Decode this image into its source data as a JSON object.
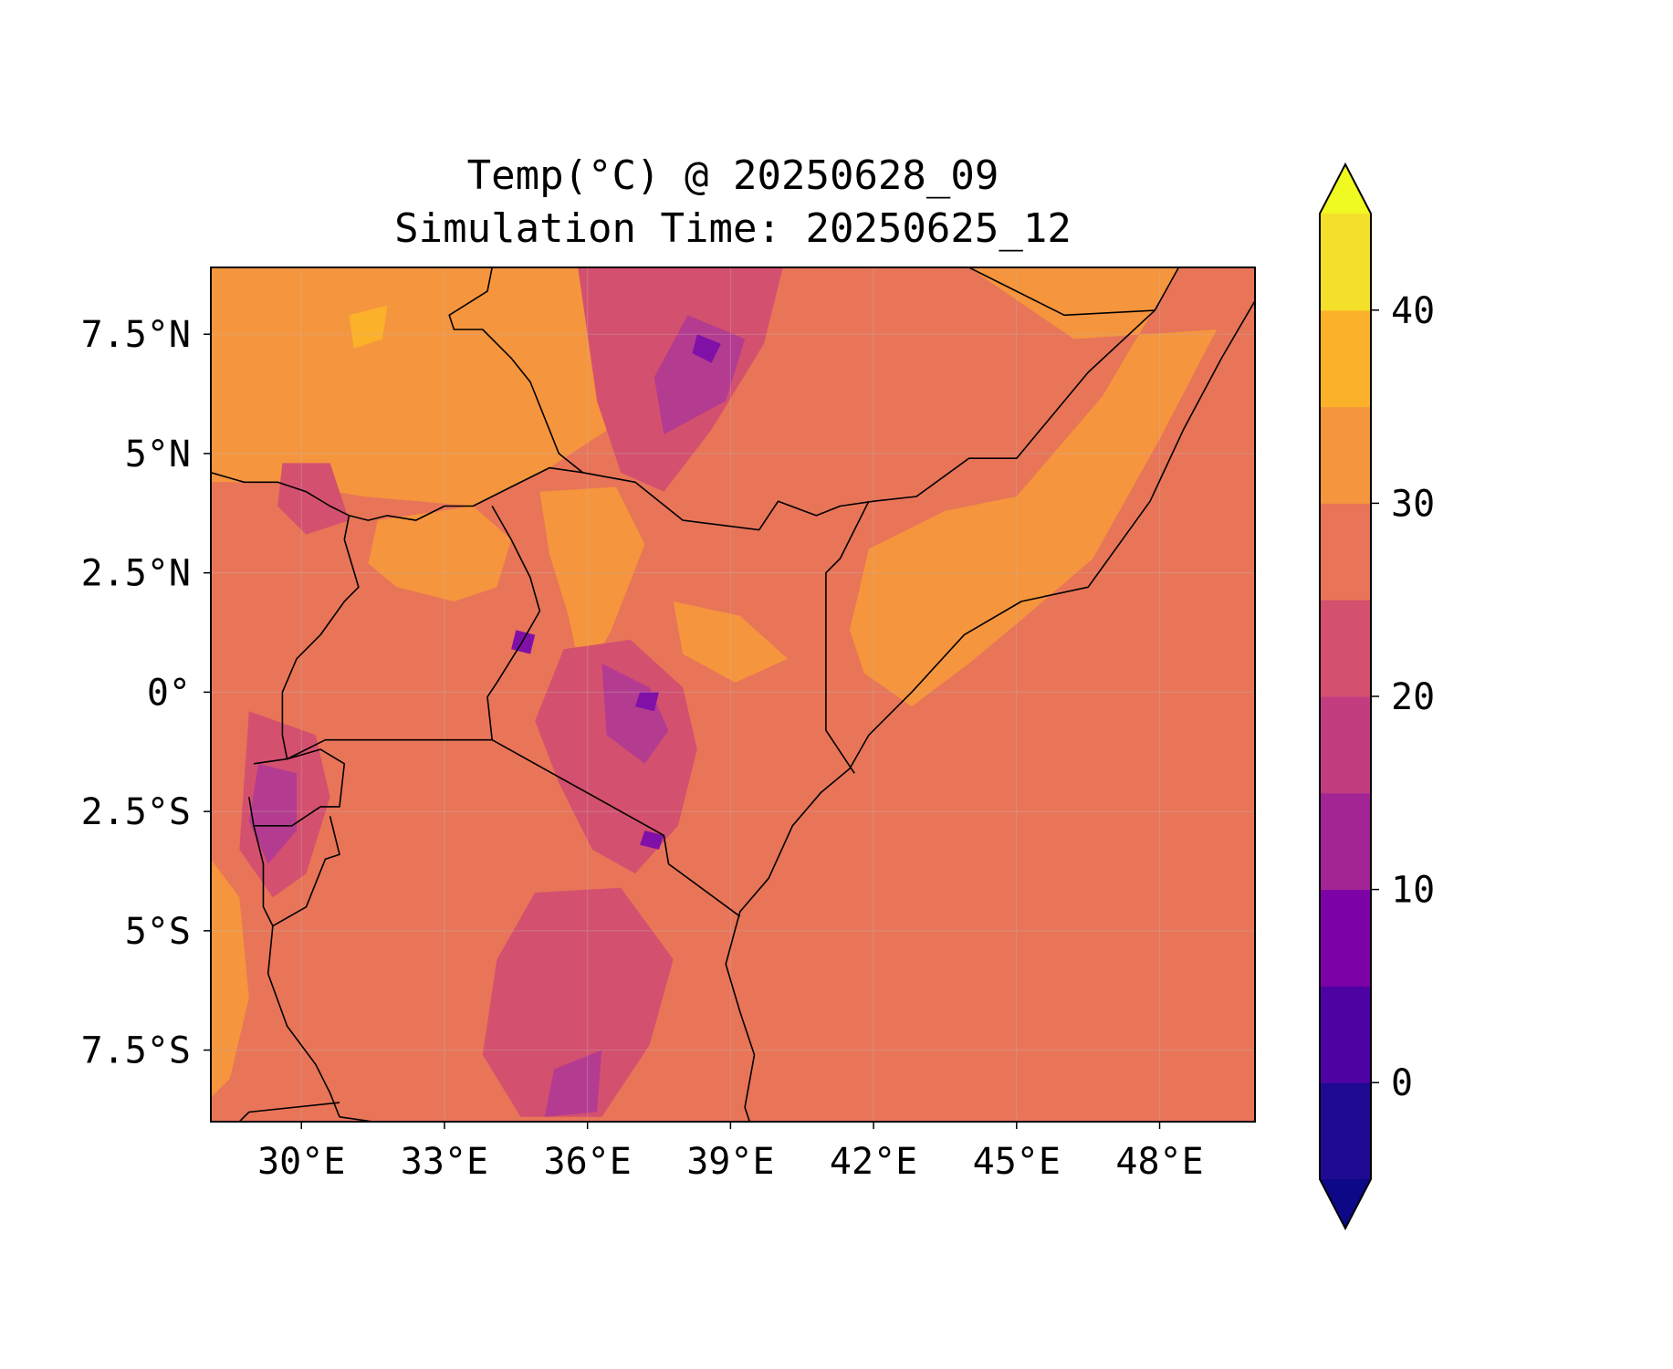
{
  "title": {
    "line1": "Temp(°C) @ 20250628_09",
    "line2": "Simulation Time: 20250625_12"
  },
  "map": {
    "projection": "PlateCarree",
    "extent": {
      "lon_min": 28.1,
      "lon_max": 50.0,
      "lat_min": -9.0,
      "lat_max": 8.9
    },
    "ocean_color": "#e87558",
    "x_ticks": [
      {
        "value": 30,
        "label": "30°E"
      },
      {
        "value": 33,
        "label": "33°E"
      },
      {
        "value": 36,
        "label": "36°E"
      },
      {
        "value": 39,
        "label": "39°E"
      },
      {
        "value": 42,
        "label": "42°E"
      },
      {
        "value": 45,
        "label": "45°E"
      },
      {
        "value": 48,
        "label": "48°E"
      }
    ],
    "y_ticks": [
      {
        "value": 7.5,
        "label": "7.5°N"
      },
      {
        "value": 5,
        "label": "5°N"
      },
      {
        "value": 2.5,
        "label": "2.5°N"
      },
      {
        "value": 0,
        "label": "0°"
      },
      {
        "value": -2.5,
        "label": "2.5°S"
      },
      {
        "value": -5,
        "label": "5°S"
      },
      {
        "value": -7.5,
        "label": "7.5°S"
      }
    ],
    "field_regions": [
      {
        "name": "northwest-hot",
        "color": "#f5953e",
        "pts": [
          [
            28.1,
            8.9
          ],
          [
            38.5,
            8.9
          ],
          [
            37.5,
            6.2
          ],
          [
            35.2,
            4.7
          ],
          [
            33.6,
            3.9
          ],
          [
            31.3,
            4.1
          ],
          [
            29.5,
            4.4
          ],
          [
            28.1,
            4.4
          ]
        ]
      },
      {
        "name": "uganda-north",
        "color": "#f5953e",
        "pts": [
          [
            31.6,
            3.6
          ],
          [
            33.6,
            3.9
          ],
          [
            34.4,
            3.2
          ],
          [
            34.1,
            2.2
          ],
          [
            33.2,
            1.9
          ],
          [
            32.0,
            2.2
          ],
          [
            31.4,
            2.7
          ]
        ]
      },
      {
        "name": "turkana-valley",
        "color": "#f5953e",
        "pts": [
          [
            35.0,
            4.2
          ],
          [
            36.6,
            4.3
          ],
          [
            37.2,
            3.1
          ],
          [
            36.5,
            1.3
          ],
          [
            35.9,
            0.2
          ],
          [
            35.6,
            1.6
          ],
          [
            35.2,
            2.9
          ]
        ]
      },
      {
        "name": "kenya-east-plateau",
        "color": "#f5953e",
        "pts": [
          [
            37.8,
            1.9
          ],
          [
            39.2,
            1.6
          ],
          [
            40.2,
            0.7
          ],
          [
            39.1,
            0.2
          ],
          [
            38.0,
            0.8
          ]
        ]
      },
      {
        "name": "ethiopia-somali-east",
        "color": "#f5953e",
        "pts": [
          [
            44.0,
            8.9
          ],
          [
            48.4,
            8.9
          ],
          [
            46.8,
            6.2
          ],
          [
            45.0,
            4.1
          ],
          [
            43.5,
            3.8
          ],
          [
            41.9,
            3.0
          ],
          [
            41.5,
            1.3
          ],
          [
            41.8,
            0.4
          ],
          [
            42.8,
            -0.3
          ],
          [
            44.0,
            0.6
          ],
          [
            45.2,
            1.6
          ],
          [
            46.6,
            2.8
          ],
          [
            48.0,
            5.3
          ],
          [
            49.2,
            7.6
          ],
          [
            46.2,
            7.4
          ]
        ]
      },
      {
        "name": "tanzania-west-strip",
        "color": "#f5953e",
        "pts": [
          [
            28.1,
            -3.5
          ],
          [
            28.7,
            -4.3
          ],
          [
            28.9,
            -6.4
          ],
          [
            28.5,
            -8.1
          ],
          [
            28.1,
            -8.5
          ]
        ]
      },
      {
        "name": "ethiopia-highlands",
        "color": "#d4506f",
        "pts": [
          [
            35.8,
            8.9
          ],
          [
            40.1,
            8.9
          ],
          [
            39.7,
            7.3
          ],
          [
            38.6,
            5.5
          ],
          [
            37.6,
            4.2
          ],
          [
            36.7,
            4.6
          ],
          [
            36.2,
            6.1
          ]
        ]
      },
      {
        "name": "ethiopia-highlands-core",
        "color": "#b43c90",
        "pts": [
          [
            38.1,
            7.9
          ],
          [
            39.3,
            7.4
          ],
          [
            38.9,
            6.1
          ],
          [
            37.6,
            5.4
          ],
          [
            37.4,
            6.6
          ]
        ]
      },
      {
        "name": "kenya-highlands",
        "color": "#d4506f",
        "pts": [
          [
            35.5,
            0.9
          ],
          [
            36.9,
            1.1
          ],
          [
            38.0,
            0.1
          ],
          [
            38.3,
            -1.2
          ],
          [
            37.9,
            -2.8
          ],
          [
            37.0,
            -3.8
          ],
          [
            36.1,
            -3.3
          ],
          [
            35.4,
            -1.9
          ],
          [
            34.9,
            -0.6
          ]
        ]
      },
      {
        "name": "kenya-highlands-core",
        "color": "#b43c90",
        "pts": [
          [
            36.3,
            0.6
          ],
          [
            37.3,
            0.1
          ],
          [
            37.7,
            -0.8
          ],
          [
            37.2,
            -1.5
          ],
          [
            36.4,
            -0.9
          ]
        ]
      },
      {
        "name": "tanzania-central-highlands",
        "color": "#d4506f",
        "pts": [
          [
            34.9,
            -4.2
          ],
          [
            36.7,
            -4.1
          ],
          [
            37.8,
            -5.6
          ],
          [
            37.3,
            -7.4
          ],
          [
            36.3,
            -8.9
          ],
          [
            34.6,
            -8.9
          ],
          [
            33.8,
            -7.6
          ],
          [
            34.1,
            -5.6
          ]
        ]
      },
      {
        "name": "tanzania-southern-core",
        "color": "#b43c90",
        "pts": [
          [
            35.3,
            -7.9
          ],
          [
            36.3,
            -7.5
          ],
          [
            36.2,
            -8.8
          ],
          [
            35.1,
            -8.9
          ]
        ]
      },
      {
        "name": "rwanda-burundi-highlands",
        "color": "#d4506f",
        "pts": [
          [
            28.9,
            -0.4
          ],
          [
            30.3,
            -0.9
          ],
          [
            30.6,
            -2.2
          ],
          [
            30.1,
            -3.8
          ],
          [
            29.4,
            -4.3
          ],
          [
            28.7,
            -3.3
          ]
        ]
      },
      {
        "name": "rift-west-core",
        "color": "#b43c90",
        "pts": [
          [
            29.1,
            -1.5
          ],
          [
            29.9,
            -1.7
          ],
          [
            29.9,
            -2.9
          ],
          [
            29.3,
            -3.6
          ],
          [
            28.9,
            -2.7
          ]
        ]
      },
      {
        "name": "south-sudan-highland",
        "color": "#d4506f",
        "pts": [
          [
            29.6,
            4.8
          ],
          [
            30.6,
            4.8
          ],
          [
            31.0,
            3.6
          ],
          [
            30.1,
            3.3
          ],
          [
            29.5,
            3.9
          ]
        ]
      },
      {
        "name": "mt-elgon-spot",
        "color": "#8010a8",
        "pts": [
          [
            34.5,
            1.3
          ],
          [
            34.9,
            1.2
          ],
          [
            34.8,
            0.8
          ],
          [
            34.4,
            0.9
          ]
        ]
      },
      {
        "name": "mt-kenya-spot",
        "color": "#8010a8",
        "pts": [
          [
            37.1,
            -0.0
          ],
          [
            37.5,
            0.0
          ],
          [
            37.4,
            -0.4
          ],
          [
            37.0,
            -0.3
          ]
        ]
      },
      {
        "name": "kilimanjaro-spot",
        "color": "#8010a8",
        "pts": [
          [
            37.2,
            -2.9
          ],
          [
            37.6,
            -3.0
          ],
          [
            37.5,
            -3.3
          ],
          [
            37.1,
            -3.2
          ]
        ]
      },
      {
        "name": "simien-spot",
        "color": "#8010a8",
        "pts": [
          [
            38.3,
            7.5
          ],
          [
            38.8,
            7.3
          ],
          [
            38.6,
            6.9
          ],
          [
            38.2,
            7.1
          ]
        ]
      },
      {
        "name": "lake-turkana-hot",
        "color": "#fbb12a",
        "pts": [
          [
            31.0,
            7.9
          ],
          [
            31.8,
            8.1
          ],
          [
            31.7,
            7.4
          ],
          [
            31.1,
            7.2
          ]
        ]
      }
    ],
    "borders": [
      {
        "name": "somalia-coast",
        "pts": [
          [
            50.0,
            8.2
          ],
          [
            49.3,
            7.0
          ],
          [
            48.5,
            5.5
          ],
          [
            47.8,
            4.0
          ],
          [
            46.5,
            2.2
          ],
          [
            45.1,
            1.9
          ],
          [
            43.9,
            1.2
          ],
          [
            42.8,
            0.0
          ],
          [
            41.9,
            -0.9
          ],
          [
            41.5,
            -1.6
          ],
          [
            40.9,
            -2.1
          ],
          [
            40.3,
            -2.8
          ],
          [
            39.8,
            -3.9
          ],
          [
            39.2,
            -4.6
          ],
          [
            38.9,
            -5.7
          ],
          [
            39.2,
            -6.7
          ],
          [
            39.5,
            -7.6
          ],
          [
            39.3,
            -8.7
          ],
          [
            39.4,
            -9.0
          ]
        ]
      },
      {
        "name": "ethiopia-somalia",
        "pts": [
          [
            48.4,
            8.9
          ],
          [
            47.9,
            8.0
          ],
          [
            46.5,
            6.7
          ],
          [
            45.0,
            4.9
          ],
          [
            44.0,
            4.9
          ],
          [
            42.9,
            4.1
          ],
          [
            42.0,
            4.0
          ],
          [
            41.3,
            3.9
          ],
          [
            40.8,
            3.7
          ],
          [
            40.0,
            4.0
          ],
          [
            39.6,
            3.4
          ],
          [
            38.0,
            3.6
          ],
          [
            37.0,
            4.4
          ],
          [
            35.9,
            4.6
          ],
          [
            35.2,
            4.7
          ],
          [
            34.4,
            4.3
          ],
          [
            33.6,
            3.9
          ],
          [
            33.0,
            3.9
          ],
          [
            32.4,
            3.6
          ],
          [
            31.8,
            3.7
          ],
          [
            31.4,
            3.6
          ],
          [
            31.0,
            3.7
          ],
          [
            30.6,
            3.9
          ],
          [
            30.1,
            4.2
          ],
          [
            29.5,
            4.4
          ],
          [
            28.8,
            4.4
          ],
          [
            28.1,
            4.6
          ]
        ]
      },
      {
        "name": "ethiopia-east",
        "pts": [
          [
            44.0,
            8.9
          ],
          [
            46.0,
            7.9
          ],
          [
            47.9,
            8.0
          ]
        ]
      },
      {
        "name": "somalia-kenya",
        "pts": [
          [
            41.9,
            4.0
          ],
          [
            41.3,
            2.8
          ],
          [
            41.0,
            2.5
          ],
          [
            41.0,
            -0.8
          ],
          [
            41.6,
            -1.7
          ]
        ]
      },
      {
        "name": "south-sudan-ethiopia",
        "pts": [
          [
            34.0,
            8.9
          ],
          [
            33.9,
            8.4
          ],
          [
            33.1,
            7.9
          ],
          [
            33.2,
            7.6
          ],
          [
            33.8,
            7.6
          ],
          [
            34.4,
            7.0
          ],
          [
            34.8,
            6.5
          ],
          [
            35.2,
            5.5
          ],
          [
            35.4,
            5.0
          ],
          [
            35.9,
            4.6
          ]
        ]
      },
      {
        "name": "uganda-kenya",
        "pts": [
          [
            34.0,
            3.9
          ],
          [
            34.4,
            3.2
          ],
          [
            34.8,
            2.4
          ],
          [
            35.0,
            1.7
          ],
          [
            34.6,
            1.0
          ],
          [
            34.1,
            0.2
          ],
          [
            33.9,
            -0.1
          ],
          [
            34.0,
            -1.0
          ]
        ]
      },
      {
        "name": "uganda-drc",
        "pts": [
          [
            31.0,
            3.7
          ],
          [
            30.9,
            3.2
          ],
          [
            31.2,
            2.2
          ],
          [
            30.9,
            1.9
          ],
          [
            30.4,
            1.2
          ],
          [
            29.9,
            0.7
          ],
          [
            29.6,
            0.0
          ],
          [
            29.6,
            -0.9
          ],
          [
            29.7,
            -1.4
          ],
          [
            30.5,
            -1.0
          ],
          [
            31.0,
            -1.0
          ],
          [
            34.0,
            -1.0
          ]
        ]
      },
      {
        "name": "kenya-tanzania",
        "pts": [
          [
            34.0,
            -1.0
          ],
          [
            37.6,
            -3.0
          ],
          [
            37.7,
            -3.6
          ],
          [
            39.2,
            -4.7
          ]
        ]
      },
      {
        "name": "rwanda-burundi",
        "pts": [
          [
            29.0,
            -1.5
          ],
          [
            29.7,
            -1.4
          ],
          [
            30.4,
            -1.2
          ],
          [
            30.9,
            -1.5
          ],
          [
            30.8,
            -2.4
          ],
          [
            30.4,
            -2.4
          ],
          [
            29.8,
            -2.8
          ],
          [
            29.0,
            -2.8
          ],
          [
            28.9,
            -2.2
          ]
        ]
      },
      {
        "name": "burundi-tanzania",
        "pts": [
          [
            29.0,
            -2.8
          ],
          [
            29.2,
            -3.6
          ],
          [
            29.2,
            -4.5
          ],
          [
            29.4,
            -4.9
          ],
          [
            30.1,
            -4.5
          ],
          [
            30.5,
            -3.5
          ],
          [
            30.8,
            -3.4
          ],
          [
            30.6,
            -2.6
          ]
        ]
      },
      {
        "name": "lake-tanganyika-east",
        "pts": [
          [
            29.4,
            -4.9
          ],
          [
            29.3,
            -5.9
          ],
          [
            29.7,
            -7.0
          ],
          [
            30.3,
            -7.8
          ],
          [
            30.6,
            -8.4
          ],
          [
            30.8,
            -8.9
          ]
        ]
      },
      {
        "name": "zambia-tanzania",
        "pts": [
          [
            30.8,
            -8.6
          ],
          [
            28.9,
            -8.8
          ],
          [
            28.7,
            -9.0
          ]
        ]
      },
      {
        "name": "zambia-malawi",
        "pts": [
          [
            30.8,
            -8.9
          ],
          [
            31.5,
            -9.0
          ]
        ]
      }
    ],
    "colorbar": {
      "levels": [
        -5,
        0,
        5,
        10,
        15,
        20,
        25,
        30,
        35,
        40,
        45
      ],
      "colors": [
        "#1e0a91",
        "#4f02a3",
        "#7c02a8",
        "#a32495",
        "#c23c80",
        "#d4506f",
        "#e87558",
        "#f5953e",
        "#fbb12a",
        "#f4e02b"
      ],
      "extend_min_color": "#0d0887",
      "extend_max_color": "#f0f921",
      "ticks": [
        {
          "value": 0,
          "label": "0"
        },
        {
          "value": 10,
          "label": "10"
        },
        {
          "value": 20,
          "label": "20"
        },
        {
          "value": 30,
          "label": "30"
        },
        {
          "value": 40,
          "label": "40"
        }
      ]
    }
  }
}
